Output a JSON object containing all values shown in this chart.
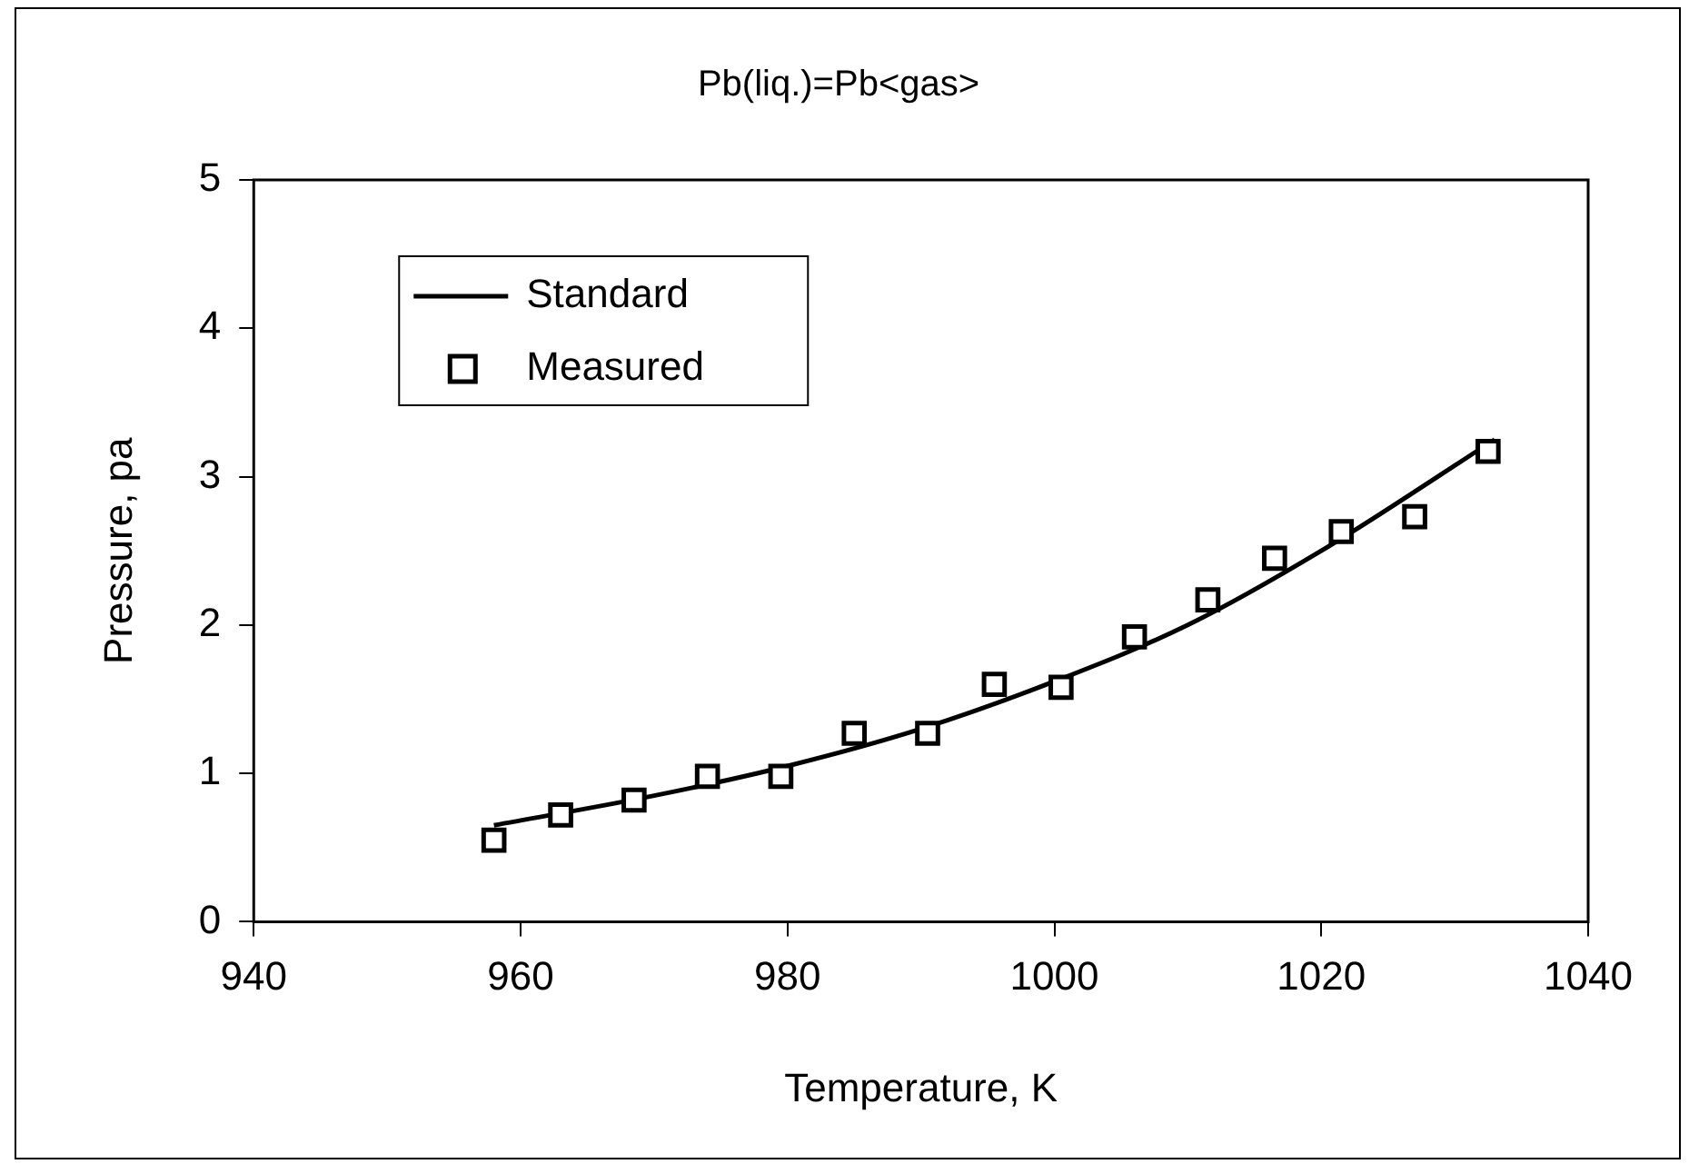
{
  "chart_data": {
    "type": "scatter",
    "title": "Pb(liq.)=Pb<gas>",
    "xlabel": "Temperature, K",
    "ylabel": "Pressure, pa",
    "xlim": [
      940,
      1040
    ],
    "xticks": [
      940,
      960,
      980,
      1000,
      1020,
      1040
    ],
    "ylim": [
      0,
      5
    ],
    "yticks": [
      0,
      1,
      2,
      3,
      4,
      5
    ],
    "grid": false,
    "legend": "top left",
    "series": [
      {
        "name": "Standard",
        "type": "line",
        "color": "#000000",
        "marker": "none",
        "x": [
          958,
          970,
          980,
          990,
          1000,
          1010,
          1020,
          1033
        ],
        "values": [
          0.65,
          0.85,
          1.05,
          1.3,
          1.62,
          2.0,
          2.5,
          3.25
        ]
      },
      {
        "name": "Measured",
        "color": "#000000",
        "marker": "square",
        "x": [
          958,
          963,
          968.5,
          974,
          979.5,
          985,
          990.5,
          995.5,
          1000.5,
          1006,
          1011.5,
          1016.5,
          1021.5,
          1027,
          1032.5
        ],
        "values": [
          0.55,
          0.72,
          0.82,
          0.98,
          0.98,
          1.27,
          1.27,
          1.6,
          1.58,
          1.92,
          2.17,
          2.45,
          2.63,
          2.73,
          3.17
        ]
      }
    ]
  }
}
